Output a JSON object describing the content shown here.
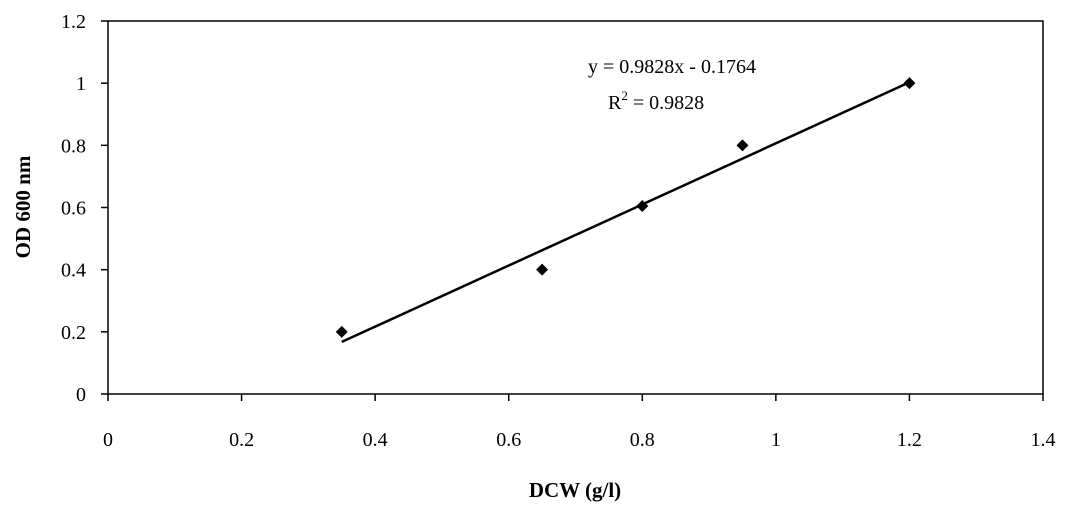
{
  "chart_data": {
    "type": "scatter",
    "xlabel": "DCW (g/l)",
    "ylabel": "OD 600 nm",
    "xlim": [
      0,
      1.4
    ],
    "ylim": [
      0,
      1.2
    ],
    "x_ticks": [
      "0",
      "0.2",
      "0.4",
      "0.6",
      "0.8",
      "1",
      "1.2",
      "1.4"
    ],
    "y_ticks": [
      "0",
      "0.2",
      "0.4",
      "0.6",
      "0.8",
      "1",
      "1.2"
    ],
    "grid": false,
    "legend": "none",
    "marker": "diamond",
    "series": [
      {
        "x": [
          0.35,
          0.65,
          0.8,
          0.95,
          1.2
        ],
        "y": [
          0.2,
          0.4,
          0.605,
          0.8,
          1.0
        ]
      }
    ],
    "trendline": {
      "type": "linear",
      "slope": 0.9828,
      "intercept": -0.1764,
      "x_range": [
        0.35,
        1.2
      ],
      "equation_text": "y = 0.9828x - 0.1764",
      "r2_prefix": "R",
      "r2_exp": "2",
      "r2_suffix": " = 0.9828"
    },
    "colors": {
      "marker": "#000000",
      "line": "#000000",
      "axis": "#000000"
    }
  }
}
